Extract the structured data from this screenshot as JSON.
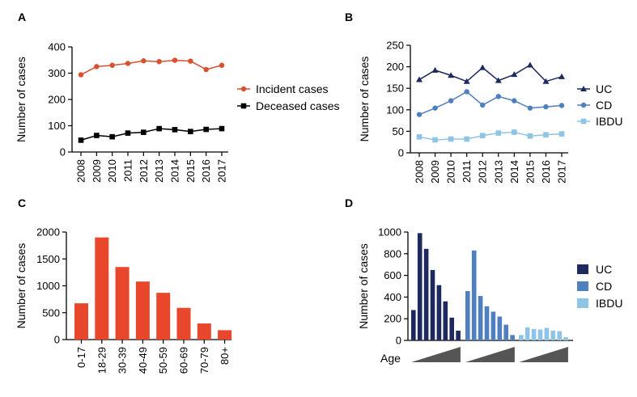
{
  "colors": {
    "incident": "#d94f30",
    "deceased": "#000000",
    "uc": "#1e2a5e",
    "cd": "#4f7fbf",
    "ibdu": "#8ec4e6",
    "age_bar": "#e8472b",
    "wedge": "#555555"
  },
  "chart_data": [
    {
      "panel": "A",
      "type": "line",
      "ylabel": "Number of cases",
      "ylim": [
        0,
        400
      ],
      "yticks": [
        0,
        100,
        200,
        300,
        400
      ],
      "x": [
        "2008",
        "2009",
        "2010",
        "2011",
        "2012",
        "2013",
        "2014",
        "2015",
        "2016",
        "2017"
      ],
      "series": [
        {
          "name": "Incident cases",
          "marker": "circle",
          "color_key": "incident",
          "values": [
            294,
            325,
            330,
            337,
            347,
            344,
            349,
            346,
            314,
            330
          ]
        },
        {
          "name": "Deceased cases",
          "marker": "square",
          "color_key": "deceased",
          "values": [
            45,
            63,
            58,
            72,
            75,
            89,
            85,
            78,
            86,
            89
          ]
        }
      ]
    },
    {
      "panel": "B",
      "type": "line",
      "ylabel": "Number of cases",
      "ylim": [
        0,
        250
      ],
      "yticks": [
        0,
        50,
        100,
        150,
        200,
        250
      ],
      "x": [
        "2008",
        "2009",
        "2010",
        "2011",
        "2012",
        "2013",
        "2014",
        "2015",
        "2016",
        "2017"
      ],
      "series": [
        {
          "name": "UC",
          "marker": "triangle",
          "color_key": "uc",
          "values": [
            170,
            192,
            180,
            166,
            198,
            168,
            182,
            204,
            166,
            177
          ]
        },
        {
          "name": "CD",
          "marker": "circle",
          "color_key": "cd",
          "values": [
            89,
            104,
            121,
            142,
            111,
            131,
            121,
            104,
            107,
            110
          ]
        },
        {
          "name": "IBDU",
          "marker": "square",
          "color_key": "ibdu",
          "values": [
            37,
            30,
            32,
            32,
            40,
            46,
            48,
            39,
            42,
            44
          ]
        }
      ]
    },
    {
      "panel": "C",
      "type": "bar",
      "ylabel": "Number of cases",
      "ylim": [
        0,
        2000
      ],
      "yticks": [
        0,
        500,
        1000,
        1500,
        2000
      ],
      "categories": [
        "0-17",
        "18-29",
        "30-39",
        "40-49",
        "50-59",
        "60-69",
        "70-79",
        "80+"
      ],
      "values": [
        675,
        1900,
        1350,
        1080,
        870,
        590,
        300,
        175
      ]
    },
    {
      "panel": "D",
      "type": "bar",
      "ylabel": "Number of cases",
      "xlabel": "Age",
      "ylim": [
        0,
        1000
      ],
      "yticks": [
        0,
        200,
        400,
        600,
        800,
        1000
      ],
      "series": [
        {
          "name": "UC",
          "color_key": "uc",
          "values": [
            280,
            990,
            845,
            650,
            510,
            360,
            210,
            90
          ]
        },
        {
          "name": "CD",
          "color_key": "cd",
          "values": [
            455,
            830,
            410,
            315,
            265,
            220,
            145,
            50
          ]
        },
        {
          "name": "IBDU",
          "color_key": "ibdu",
          "values": [
            50,
            120,
            105,
            100,
            115,
            90,
            85,
            30
          ]
        }
      ]
    }
  ]
}
